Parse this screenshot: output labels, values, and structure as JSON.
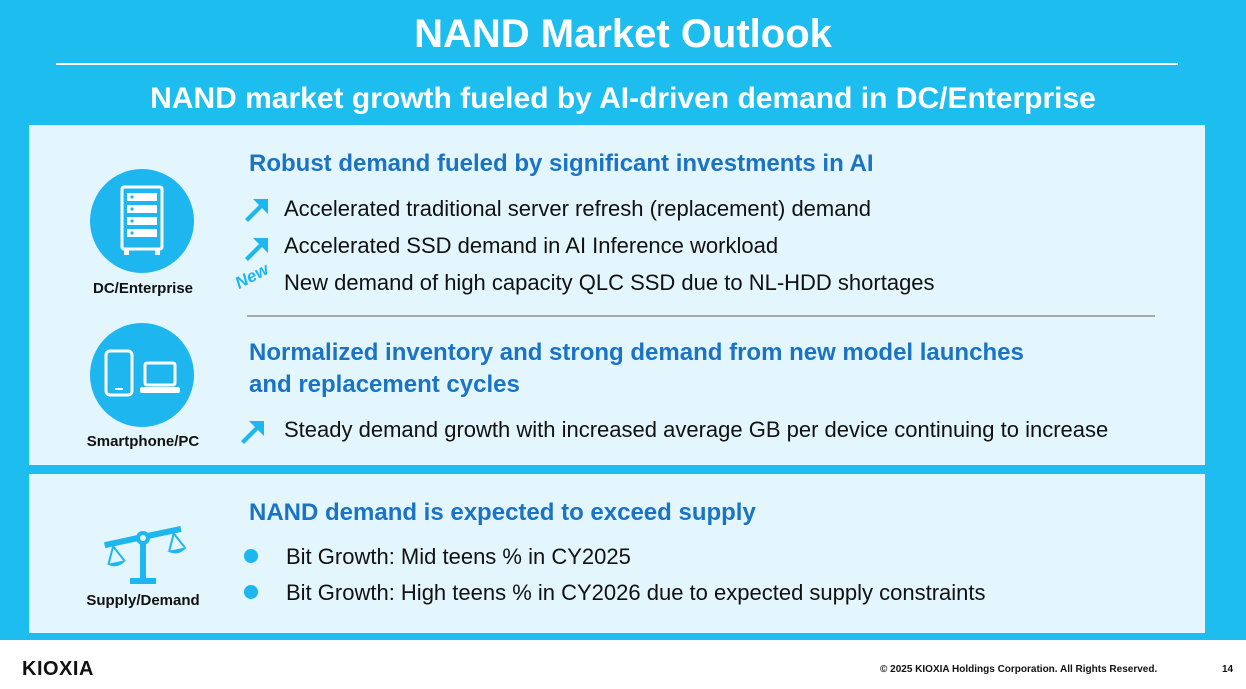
{
  "slide": {
    "title": "NAND Market Outlook",
    "subtitle": "NAND market growth fueled by AI-driven demand in DC/Enterprise",
    "colors": {
      "background": "#1ebdf0",
      "panel": "#e3f5fd",
      "heading": "#1a73c4",
      "accent": "#1eb6ef"
    }
  },
  "sections": {
    "dc": {
      "icon": "server-rack-icon",
      "label": "DC/Enterprise",
      "heading": "Robust demand fueled by significant investments in AI",
      "bullets": [
        "Accelerated traditional server refresh (replacement) demand",
        "Accelerated SSD demand in AI Inference workload",
        "New demand of high capacity QLC SSD due to NL-HDD shortages"
      ],
      "new_tag": "New"
    },
    "smartphone": {
      "icon": "smartphone-laptop-icon",
      "label": "Smartphone/PC",
      "heading_line1": "Normalized inventory and strong demand from new model launches",
      "heading_line2": "and replacement cycles",
      "bullets": [
        "Steady demand growth with increased average GB per device continuing to increase"
      ]
    },
    "supply": {
      "icon": "balance-scale-icon",
      "label": "Supply/Demand",
      "heading": "NAND demand is expected to exceed supply",
      "bullets": [
        "Bit Growth: Mid teens % in CY2025",
        "Bit Growth: High teens % in CY2026 due to expected supply constraints"
      ]
    }
  },
  "footer": {
    "logo": "KIOXIA",
    "copyright": "© 2025 KIOXIA Holdings Corporation. All Rights Reserved.",
    "page_number": "14"
  }
}
